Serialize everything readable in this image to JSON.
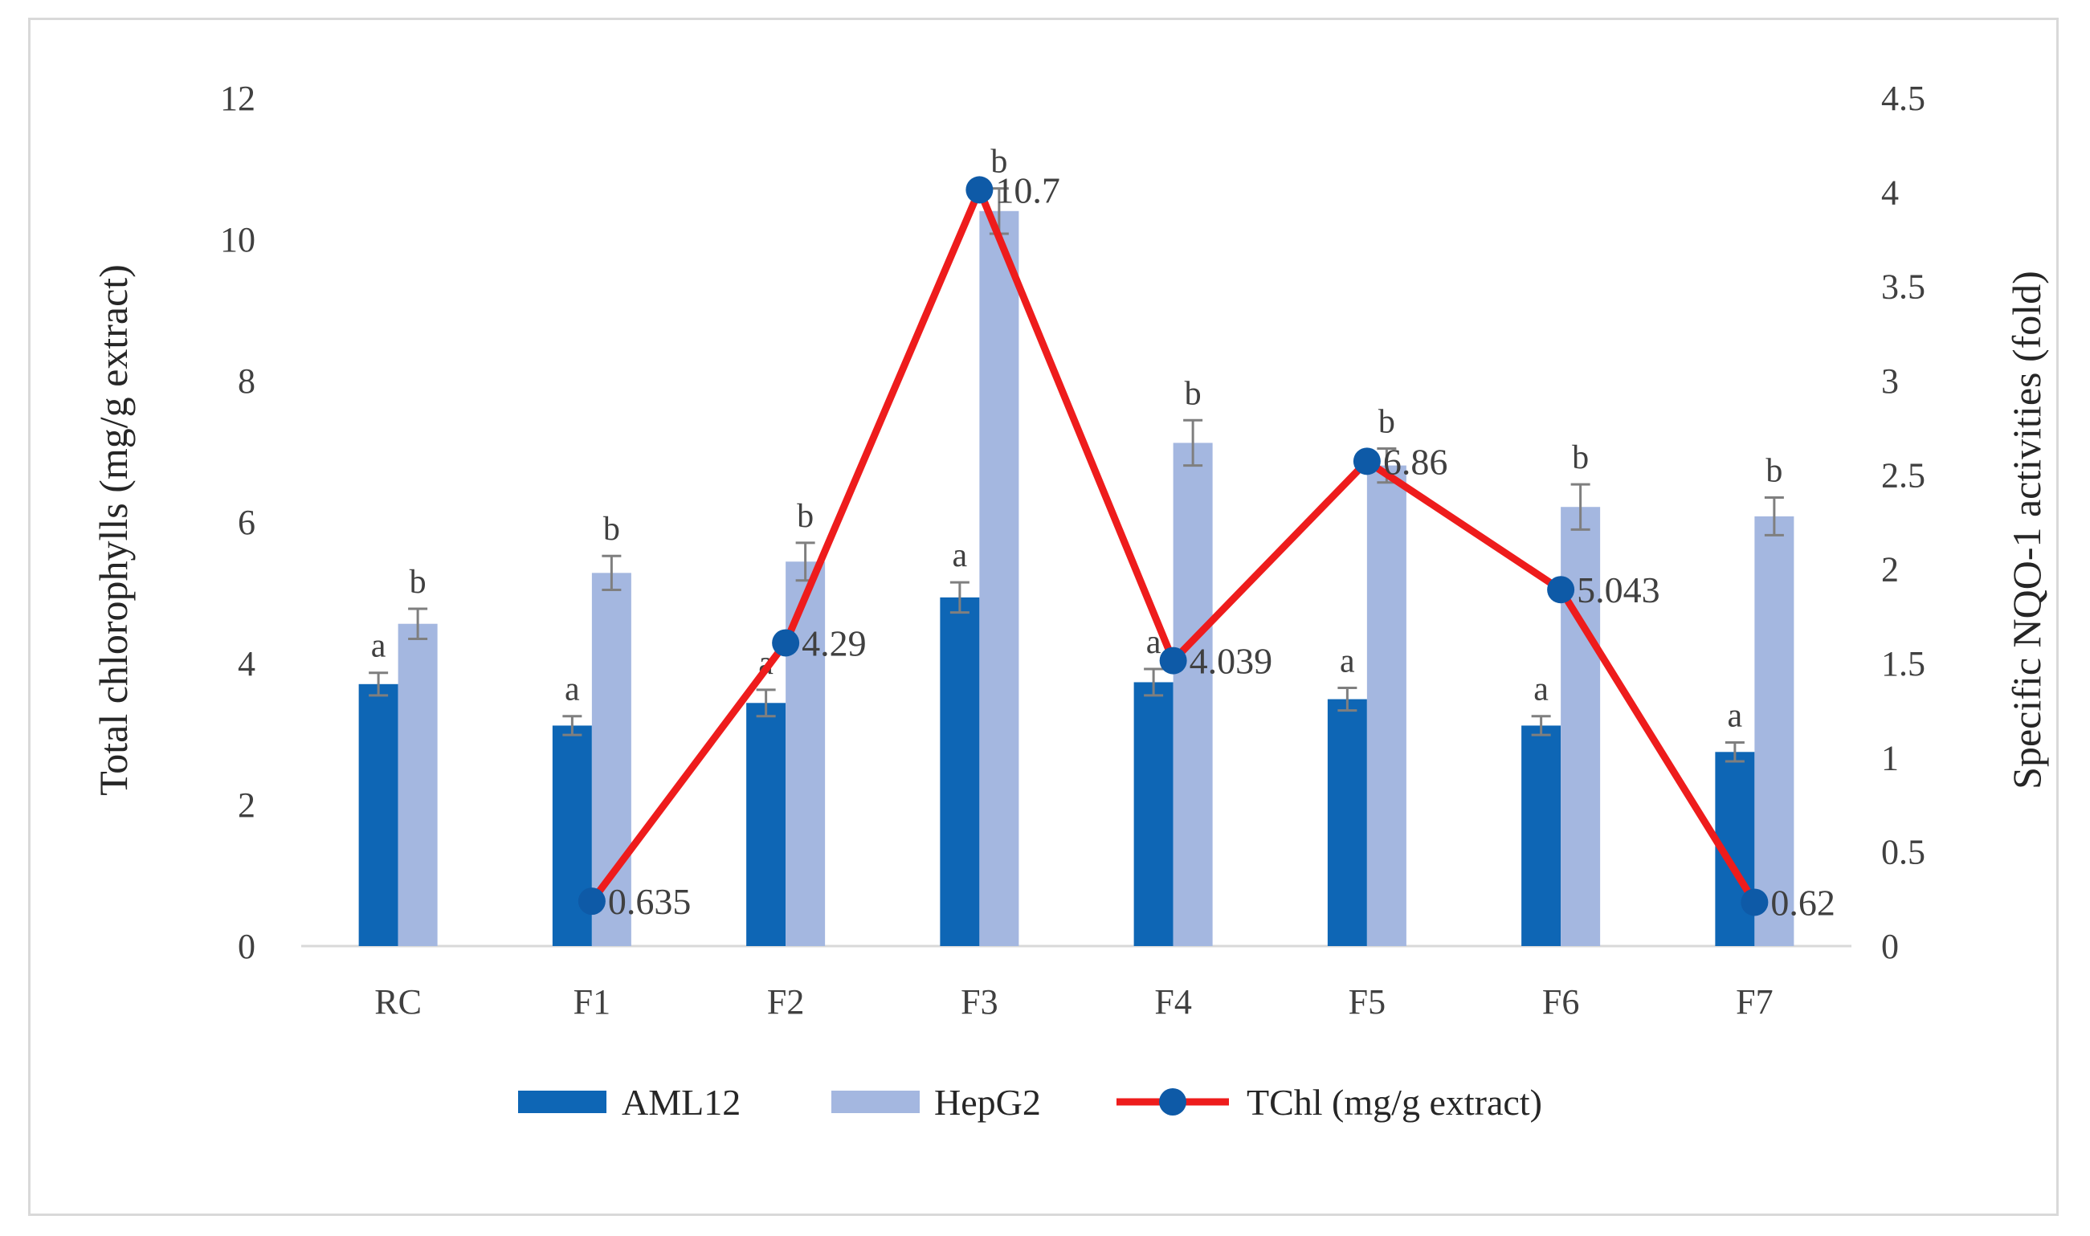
{
  "chart_data": {
    "type": "bar+line",
    "categories": [
      "RC",
      "F1",
      "F2",
      "F3",
      "F4",
      "F5",
      "F6",
      "F7"
    ],
    "series": [
      {
        "name": "AML12",
        "axis": "right",
        "color": "#0e66b5",
        "values": [
          1.39,
          1.17,
          1.29,
          1.85,
          1.4,
          1.31,
          1.17,
          1.03
        ],
        "errors": [
          0.06,
          0.05,
          0.07,
          0.08,
          0.07,
          0.06,
          0.05,
          0.05
        ],
        "letters": [
          "a",
          "a",
          "a",
          "a",
          "a",
          "a",
          "a",
          "a"
        ]
      },
      {
        "name": "HepG2",
        "axis": "right",
        "color": "#a4b7e0",
        "values": [
          1.71,
          1.98,
          2.04,
          3.9,
          2.67,
          2.55,
          2.33,
          2.28
        ],
        "errors": [
          0.08,
          0.09,
          0.1,
          0.12,
          0.12,
          0.09,
          0.12,
          0.1
        ],
        "letters": [
          "b",
          "b",
          "b",
          "b",
          "b",
          "b",
          "b",
          "b"
        ]
      },
      {
        "name": "TChl (mg/g extract)",
        "type": "line",
        "axis": "left",
        "color": "#ee1c1c",
        "marker_color": "#0e5aa7",
        "values": [
          null,
          0.635,
          4.29,
          10.7,
          4.039,
          6.86,
          5.043,
          0.62
        ],
        "labels": [
          "",
          "0.635",
          "4.29",
          "10.7",
          "4.039",
          "6.86",
          "5.043",
          "0.62"
        ]
      }
    ],
    "y_left": {
      "label": "Total chlorophylls (mg/g extract)",
      "range": [
        0,
        12
      ],
      "ticks": [
        "0",
        "2",
        "4",
        "6",
        "8",
        "10",
        "12"
      ]
    },
    "y_right": {
      "label": "Specific NQO-1 activities (fold)",
      "range": [
        0,
        4.5
      ],
      "ticks": [
        "0",
        "0.5",
        "1",
        "1.5",
        "2",
        "2.5",
        "3",
        "3.5",
        "4",
        "4.5"
      ]
    },
    "legend": {
      "position": "bottom",
      "items": [
        "AML12",
        "HepG2",
        "TChl (mg/g extract)"
      ]
    },
    "grid": false
  }
}
